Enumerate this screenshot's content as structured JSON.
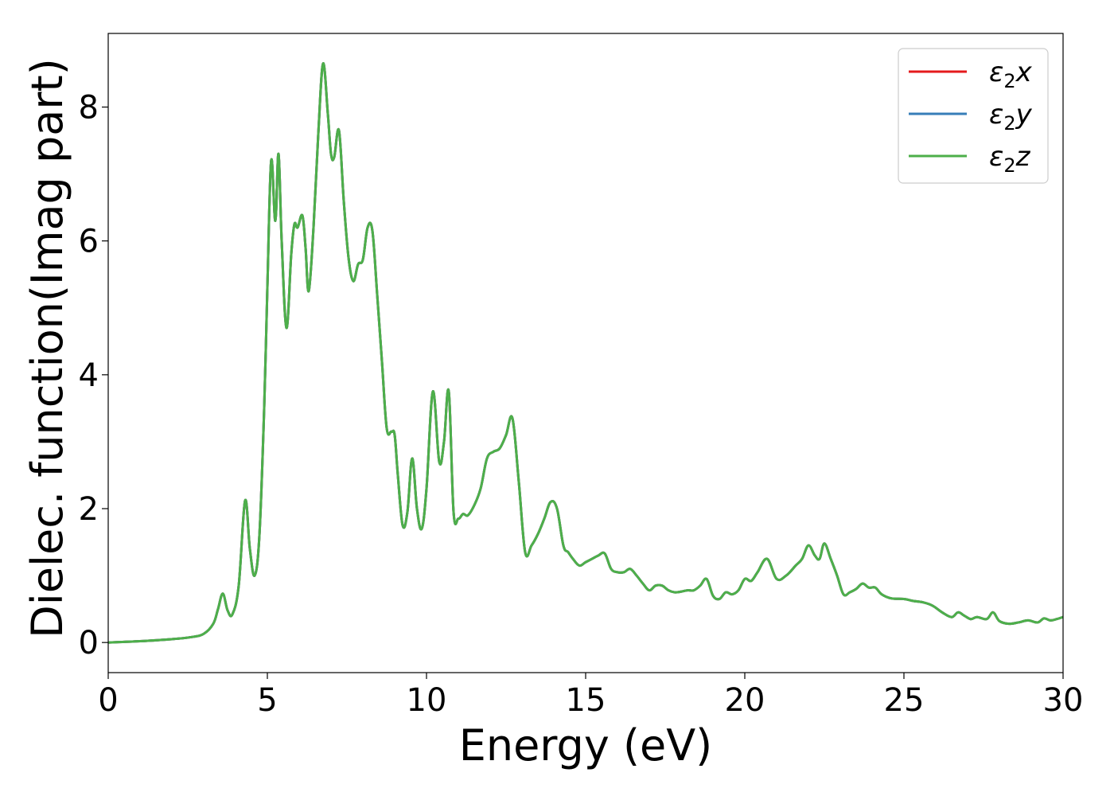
{
  "chart_data": {
    "type": "line",
    "xlabel": "Energy (eV)",
    "ylabel": "Dielec. function(Imag part)",
    "xlim": [
      0,
      30
    ],
    "ylim": [
      -0.45,
      9.1
    ],
    "xticks": [
      0,
      5,
      10,
      15,
      20,
      25,
      30
    ],
    "yticks": [
      0,
      2,
      4,
      6,
      8
    ],
    "grid": false,
    "legend_position": "top-right",
    "x": [
      0,
      1,
      2,
      2.6,
      3,
      3.3,
      3.45,
      3.6,
      3.75,
      3.9,
      4.1,
      4.3,
      4.45,
      4.6,
      4.75,
      4.9,
      5.0,
      5.12,
      5.25,
      5.35,
      5.45,
      5.6,
      5.75,
      5.85,
      5.95,
      6.1,
      6.2,
      6.3,
      6.45,
      6.6,
      6.75,
      6.9,
      7.0,
      7.1,
      7.25,
      7.4,
      7.55,
      7.7,
      7.85,
      8.0,
      8.15,
      8.3,
      8.45,
      8.6,
      8.75,
      8.9,
      9.0,
      9.1,
      9.25,
      9.4,
      9.55,
      9.7,
      9.85,
      10.0,
      10.2,
      10.4,
      10.55,
      10.7,
      10.85,
      11.0,
      11.15,
      11.3,
      11.5,
      11.7,
      11.9,
      12.1,
      12.3,
      12.5,
      12.7,
      12.9,
      13.1,
      13.3,
      13.5,
      13.7,
      13.9,
      14.1,
      14.3,
      14.45,
      14.6,
      14.8,
      15.0,
      15.2,
      15.4,
      15.6,
      15.8,
      16.0,
      16.2,
      16.4,
      16.6,
      16.8,
      17.0,
      17.2,
      17.4,
      17.6,
      17.8,
      18.0,
      18.2,
      18.4,
      18.6,
      18.8,
      19.0,
      19.2,
      19.4,
      19.6,
      19.8,
      20.0,
      20.2,
      20.4,
      20.7,
      21.0,
      21.3,
      21.6,
      21.8,
      22.0,
      22.2,
      22.35,
      22.5,
      22.7,
      22.9,
      23.1,
      23.3,
      23.5,
      23.7,
      23.9,
      24.1,
      24.3,
      24.6,
      25.0,
      25.3,
      25.6,
      25.9,
      26.2,
      26.5,
      26.7,
      26.9,
      27.1,
      27.3,
      27.6,
      27.8,
      28.0,
      28.3,
      28.6,
      28.9,
      29.2,
      29.4,
      29.6,
      29.8,
      30.0
    ],
    "y": [
      0.0,
      0.02,
      0.05,
      0.08,
      0.13,
      0.28,
      0.5,
      0.73,
      0.48,
      0.42,
      0.85,
      2.12,
      1.4,
      1.0,
      1.6,
      3.5,
      5.3,
      7.2,
      6.3,
      7.3,
      6.0,
      4.7,
      5.8,
      6.25,
      6.2,
      6.38,
      5.9,
      5.25,
      6.2,
      7.6,
      8.65,
      7.9,
      7.3,
      7.25,
      7.65,
      6.6,
      5.75,
      5.4,
      5.65,
      5.72,
      6.2,
      6.15,
      5.2,
      4.2,
      3.2,
      3.15,
      3.1,
      2.5,
      1.75,
      1.95,
      2.75,
      2.0,
      1.7,
      2.3,
      3.75,
      2.7,
      3.0,
      3.75,
      1.95,
      1.85,
      1.92,
      1.9,
      2.05,
      2.3,
      2.75,
      2.85,
      2.9,
      3.1,
      3.35,
      2.4,
      1.35,
      1.45,
      1.62,
      1.85,
      2.1,
      2.0,
      1.45,
      1.35,
      1.25,
      1.15,
      1.2,
      1.25,
      1.3,
      1.33,
      1.1,
      1.05,
      1.05,
      1.1,
      1.0,
      0.88,
      0.78,
      0.85,
      0.85,
      0.78,
      0.75,
      0.76,
      0.78,
      0.78,
      0.85,
      0.95,
      0.7,
      0.65,
      0.75,
      0.72,
      0.78,
      0.95,
      0.92,
      1.05,
      1.25,
      0.95,
      1.0,
      1.15,
      1.25,
      1.45,
      1.3,
      1.25,
      1.48,
      1.25,
      1.0,
      0.72,
      0.75,
      0.8,
      0.88,
      0.82,
      0.82,
      0.72,
      0.66,
      0.65,
      0.62,
      0.6,
      0.55,
      0.45,
      0.38,
      0.45,
      0.4,
      0.35,
      0.38,
      0.35,
      0.45,
      0.32,
      0.28,
      0.3,
      0.33,
      0.3,
      0.36,
      0.33,
      0.35,
      0.38
    ],
    "series": [
      {
        "name": "ε₂x",
        "label_base": "ε",
        "label_sub": "2",
        "label_suffix": "x",
        "color": "#e41a1c"
      },
      {
        "name": "ε₂y",
        "label_base": "ε",
        "label_sub": "2",
        "label_suffix": "y",
        "color": "#377eb8"
      },
      {
        "name": "ε₂z",
        "label_base": "ε",
        "label_sub": "2",
        "label_suffix": "z",
        "color": "#4daf4a"
      }
    ]
  }
}
